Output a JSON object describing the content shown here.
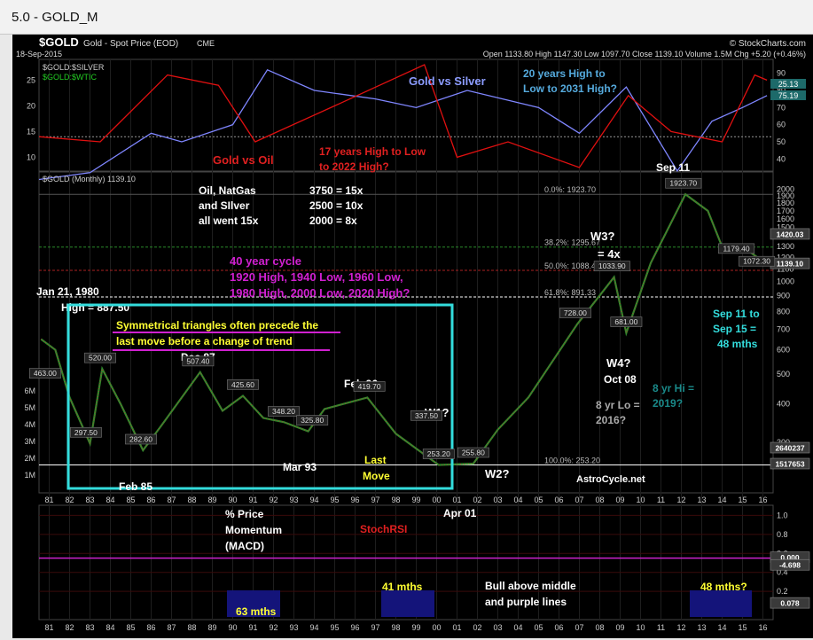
{
  "window": {
    "title": "5.0 - GOLD_M"
  },
  "header": {
    "symbol": "$GOLD",
    "name": "Gold - Spot Price (EOD)",
    "exchange": "CME",
    "watermark": "© StockCharts.com",
    "date": "18-Sep-2015",
    "ohlc": "Open 1133.80  High 1147.30  Low 1097.70  Close 1139.10  Volume 1.5M  Chg +5.20 (+0.46%)"
  },
  "colors": {
    "background": "#000000",
    "gold_line": "#8a1a1a",
    "ratio_silver": "#7f86ff",
    "ratio_oil": "#e01010",
    "white_text": "#ffffff",
    "cyan": "#33dddd",
    "magenta": "#dd22dd",
    "yellow": "#ffff33",
    "indicator_red": "#ee1111"
  },
  "chart_data": [
    {
      "panel": "ratios",
      "type": "line",
      "series_labels": [
        "$GOLD:$SILVER",
        "$GOLD:$WTIC"
      ],
      "left_ticks": [
        "25",
        "20",
        "15",
        "10"
      ],
      "right_ticks": [
        "90",
        "80",
        "70",
        "60",
        "50",
        "40"
      ],
      "current_values": [
        "25.13",
        "75.19"
      ],
      "approx_gold_silver": [
        {
          "x": 1980.0,
          "y": 28
        },
        {
          "x": 1982.5,
          "y": 32
        },
        {
          "x": 1985.5,
          "y": 55
        },
        {
          "x": 1987.0,
          "y": 50
        },
        {
          "x": 1989.5,
          "y": 60
        },
        {
          "x": 1991.2,
          "y": 92
        },
        {
          "x": 1993.5,
          "y": 80
        },
        {
          "x": 1996.5,
          "y": 75
        },
        {
          "x": 1998.5,
          "y": 70
        },
        {
          "x": 2001.0,
          "y": 80
        },
        {
          "x": 2004.5,
          "y": 70
        },
        {
          "x": 2006.5,
          "y": 55
        },
        {
          "x": 2008.8,
          "y": 82
        },
        {
          "x": 2011.3,
          "y": 33
        },
        {
          "x": 2013.0,
          "y": 62
        },
        {
          "x": 2014.5,
          "y": 70
        },
        {
          "x": 2015.7,
          "y": 77
        }
      ],
      "approx_gold_oil": [
        {
          "x": 1980.0,
          "y": 14
        },
        {
          "x": 1983.0,
          "y": 13
        },
        {
          "x": 1986.3,
          "y": 26
        },
        {
          "x": 1988.8,
          "y": 24
        },
        {
          "x": 1990.6,
          "y": 13
        },
        {
          "x": 1994.5,
          "y": 20
        },
        {
          "x": 1998.9,
          "y": 28
        },
        {
          "x": 2000.5,
          "y": 10
        },
        {
          "x": 2003.0,
          "y": 13
        },
        {
          "x": 2006.5,
          "y": 8
        },
        {
          "x": 2008.9,
          "y": 22
        },
        {
          "x": 2011.0,
          "y": 15
        },
        {
          "x": 2013.5,
          "y": 13
        },
        {
          "x": 2015.1,
          "y": 26
        },
        {
          "x": 2015.7,
          "y": 25
        }
      ],
      "annotations": [
        "Gold vs Silver",
        "20 years High to",
        "Low to 2031 High?",
        "Gold vs Oil",
        "17 years High to Low",
        "to 2022 High?",
        "Sep 11"
      ]
    },
    {
      "panel": "price",
      "type": "line",
      "title": "$GOLD (Monthly) 1139.10",
      "y_scale": "log",
      "y_ticks": [
        "2000",
        "1900",
        "1800",
        "1700",
        "1600",
        "1500",
        "1400",
        "1300",
        "1200",
        "1100",
        "1000",
        "900",
        "800",
        "700",
        "600",
        "500",
        "400",
        "300"
      ],
      "volume_ticks": [
        "6M",
        "5M",
        "4M",
        "3M",
        "2M",
        "1M"
      ],
      "right_badges": [
        "1420.03",
        "1139.10",
        "2640237",
        "1517653"
      ],
      "x_ticks": [
        "81",
        "82",
        "83",
        "84",
        "85",
        "86",
        "87",
        "88",
        "89",
        "90",
        "91",
        "92",
        "93",
        "94",
        "95",
        "96",
        "97",
        "98",
        "99",
        "00",
        "01",
        "02",
        "03",
        "04",
        "05",
        "06",
        "07",
        "08",
        "09",
        "10",
        "11",
        "12",
        "13",
        "14",
        "15",
        "16"
      ],
      "approx_close": [
        {
          "x": 1980.1,
          "y": 650
        },
        {
          "x": 1980.8,
          "y": 600
        },
        {
          "x": 1981.5,
          "y": 420
        },
        {
          "x": 1982.5,
          "y": 297.5
        },
        {
          "x": 1983.1,
          "y": 520
        },
        {
          "x": 1984.0,
          "y": 400
        },
        {
          "x": 1985.1,
          "y": 282.6
        },
        {
          "x": 1986.0,
          "y": 340
        },
        {
          "x": 1987.9,
          "y": 507.4
        },
        {
          "x": 1989.0,
          "y": 380
        },
        {
          "x": 1990.0,
          "y": 425
        },
        {
          "x": 1991.0,
          "y": 360
        },
        {
          "x": 1992.0,
          "y": 349.2
        },
        {
          "x": 1993.2,
          "y": 325.8
        },
        {
          "x": 1994.0,
          "y": 385
        },
        {
          "x": 1996.1,
          "y": 419.7
        },
        {
          "x": 1997.5,
          "y": 320
        },
        {
          "x": 1999.6,
          "y": 253.2
        },
        {
          "x": 2001.3,
          "y": 255.8
        },
        {
          "x": 2002.5,
          "y": 330
        },
        {
          "x": 2004.0,
          "y": 420
        },
        {
          "x": 2006.4,
          "y": 728
        },
        {
          "x": 2008.2,
          "y": 1033.9
        },
        {
          "x": 2008.8,
          "y": 681
        },
        {
          "x": 2010.0,
          "y": 1150
        },
        {
          "x": 2011.7,
          "y": 1923.7
        },
        {
          "x": 2012.8,
          "y": 1700
        },
        {
          "x": 2013.6,
          "y": 1250
        },
        {
          "x": 2014.5,
          "y": 1300
        },
        {
          "x": 2015.7,
          "y": 1139.1
        }
      ],
      "fib_levels": [
        "0.0%: 1923.70",
        "38.2%: 1295.67",
        "50.0%: 1088.45",
        "61.8%: 891.33",
        "100.0%: 253.20"
      ],
      "point_labels": [
        "463.00",
        "520.00",
        "297.50",
        "282.60",
        "507.40",
        "425.60",
        "348.20",
        "325.80",
        "419.70",
        "337.50",
        "253.20",
        "255.80",
        "728.00",
        "1033.90",
        "681.00",
        "1923.70",
        "1179.40",
        "1072.30"
      ],
      "annotations": {
        "oil": [
          "Oil, NatGas",
          "and SIlver",
          "all went 15x"
        ],
        "ratios": [
          "3750 = 15x",
          "2500 = 10x",
          "2000 = 8x"
        ],
        "cycle": [
          "40 year cycle",
          "1920 High, 1940 Low, 1960 Low,",
          "1980 High, 2000 Low, 2020 High?"
        ],
        "jan80": [
          "Jan 21, 1980",
          "High = 887.50"
        ],
        "triangle": [
          "Symmetrical triangles often precede the",
          "last move before a change of trend"
        ],
        "dates": [
          "Dec 87",
          "Feb 96",
          "Feb 85",
          "Mar 93",
          "Oct 08",
          "Apr 01"
        ],
        "waves": [
          "W1?",
          "W2?",
          "W3?",
          "= 4x",
          "W4?"
        ],
        "last_move": [
          "Last",
          "Move"
        ],
        "sep": [
          "Sep 11 to",
          "Sep 15 =",
          "48 mths"
        ],
        "eight_yr": [
          "8 yr Hi =",
          "2019?",
          "8 yr Lo =",
          "2016?"
        ],
        "brand": "AstroCycle.net"
      }
    },
    {
      "panel": "indicator",
      "type": "line",
      "y_ticks": [
        "1.0",
        "0.8",
        "0.6",
        "0.4",
        "0.2"
      ],
      "right_badges": [
        "0.000",
        "-4.698",
        "0.078"
      ],
      "labels": [
        "% Price",
        "Momentum",
        "(MACD)",
        "StochRSI"
      ],
      "annotations": [
        "63 mths",
        "41 mths",
        "48 mths?",
        "Bull above middle",
        "and purple lines"
      ]
    }
  ]
}
